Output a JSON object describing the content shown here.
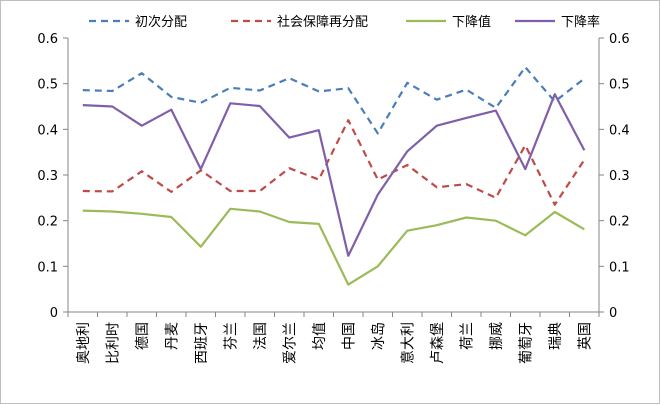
{
  "chart_data": {
    "type": "line",
    "categories": [
      "奥地利",
      "比利时",
      "德国",
      "丹麦",
      "西班牙",
      "芬兰",
      "法国",
      "爱尔兰",
      "均值",
      "中国",
      "冰岛",
      "意大利",
      "卢森堡",
      "荷兰",
      "挪威",
      "葡萄牙",
      "瑞典",
      "英国"
    ],
    "series": [
      {
        "name": "初次分配",
        "color": "#4a7ebb",
        "dash": "dashed",
        "values": [
          0.486,
          0.484,
          0.523,
          0.471,
          0.458,
          0.491,
          0.485,
          0.512,
          0.483,
          0.49,
          0.391,
          0.502,
          0.465,
          0.487,
          0.447,
          0.536,
          0.461,
          0.511
        ]
      },
      {
        "name": "社会保障再分配",
        "color": "#be4b48",
        "dash": "dashed",
        "values": [
          0.265,
          0.264,
          0.308,
          0.263,
          0.31,
          0.265,
          0.265,
          0.315,
          0.29,
          0.42,
          0.29,
          0.322,
          0.273,
          0.28,
          0.25,
          0.365,
          0.235,
          0.333
        ]
      },
      {
        "name": "下降值",
        "color": "#9bbb59",
        "dash": "solid",
        "values": [
          0.222,
          0.22,
          0.215,
          0.208,
          0.143,
          0.226,
          0.22,
          0.197,
          0.193,
          0.06,
          0.1,
          0.178,
          0.19,
          0.207,
          0.2,
          0.168,
          0.219,
          0.181
        ]
      },
      {
        "name": "下降率",
        "color": "#7f5fa9",
        "dash": "solid",
        "values": [
          0.453,
          0.45,
          0.408,
          0.443,
          0.313,
          0.457,
          0.451,
          0.382,
          0.398,
          0.123,
          0.257,
          0.352,
          0.408,
          0.425,
          0.441,
          0.313,
          0.477,
          0.354
        ]
      }
    ],
    "ylim": [
      0,
      0.6
    ],
    "yticks": [
      "0",
      "0.1",
      "0.2",
      "0.3",
      "0.4",
      "0.5",
      "0.6"
    ],
    "y2ticks": [
      "0",
      "0.1",
      "0.2",
      "0.3",
      "0.4",
      "0.5",
      "0.6"
    ],
    "grid": false,
    "legend": "top"
  }
}
